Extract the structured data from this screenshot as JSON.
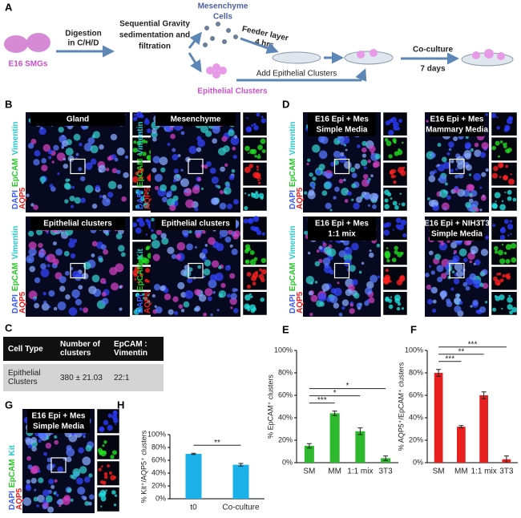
{
  "panel_labels": [
    "A",
    "B",
    "C",
    "D",
    "E",
    "F",
    "G",
    "H"
  ],
  "schematic": {
    "source": "E16 SMGs",
    "digestion": [
      "Digestion",
      "in C/H/D"
    ],
    "separation": [
      "Sequential Gravity",
      "sedimentation and",
      "filtration"
    ],
    "mesenchyme": [
      "Mesenchyme",
      "Cells"
    ],
    "epithelial": "Epithelial Clusters",
    "feeder": [
      "Feeder layer",
      "4 hrs"
    ],
    "add": "Add Epithelial Clusters",
    "coculture": [
      "Co-culture",
      "7 days"
    ]
  },
  "images": {
    "B": [
      {
        "title": [
          "Gland"
        ],
        "stains": [
          [
            {
              "text": "DAPI",
              "color": "#3b5bff"
            },
            {
              "text": "EpCAM",
              "color": "#22cc22"
            },
            {
              "text": "Vimentin",
              "color": "#22cccc"
            }
          ],
          [
            {
              "text": "AQP5",
              "color": "#ee2020"
            }
          ]
        ]
      },
      {
        "title": [
          "Mesenchyme"
        ],
        "stains": [
          [
            {
              "text": "DAPI",
              "color": "#3b5bff"
            },
            {
              "text": "EpCAM",
              "color": "#22cc22"
            },
            {
              "text": "Vimentin",
              "color": "#22cccc"
            }
          ],
          [
            {
              "text": "AQP5",
              "color": "#ee2020"
            }
          ]
        ]
      },
      {
        "title": [
          "Epithelial clusters"
        ],
        "stains": [
          [
            {
              "text": "DAPI",
              "color": "#3b5bff"
            },
            {
              "text": "EpCAM",
              "color": "#22cc22"
            },
            {
              "text": "Vimentin",
              "color": "#22cccc"
            }
          ],
          [
            {
              "text": "AQP5",
              "color": "#ee2020"
            }
          ]
        ]
      },
      {
        "title": [
          "Epithelial clusters"
        ],
        "stains": [
          [
            {
              "text": "DAPI",
              "color": "#3b5bff"
            },
            {
              "text": "EpCAM",
              "color": "#22cc22"
            },
            {
              "text": "Kit",
              "color": "#22cccc"
            }
          ],
          [
            {
              "text": "AQP5",
              "color": "#ee2020"
            }
          ]
        ]
      }
    ],
    "D": [
      {
        "title": [
          "E16 Epi + Mes",
          "Simple Media"
        ],
        "stains": [
          [
            {
              "text": "DAPI",
              "color": "#3b5bff"
            },
            {
              "text": "EpCAM",
              "color": "#22cc22"
            },
            {
              "text": "Vimentin",
              "color": "#22cccc"
            }
          ],
          [
            {
              "text": "AQP5",
              "color": "#ee2020"
            }
          ]
        ]
      },
      {
        "title": [
          "E16 Epi + Mes",
          "Mammary Media"
        ],
        "stains": []
      },
      {
        "title": [
          "E16 Epi + Mes",
          "1:1 mix"
        ],
        "stains": [
          [
            {
              "text": "DAPI",
              "color": "#3b5bff"
            },
            {
              "text": "EpCAM",
              "color": "#22cc22"
            },
            {
              "text": "Vimentin",
              "color": "#22cccc"
            }
          ],
          [
            {
              "text": "AQP5",
              "color": "#ee2020"
            }
          ]
        ]
      },
      {
        "title": [
          "E16 Epi + NIH3T3",
          "Simple Media"
        ],
        "stains": []
      }
    ],
    "G": [
      {
        "title": [
          "E16 Epi + Mes",
          "Simple Media"
        ],
        "stains": [
          [
            {
              "text": "DAPI",
              "color": "#3b5bff"
            },
            {
              "text": "EpCAM",
              "color": "#22cc22"
            },
            {
              "text": "Kit",
              "color": "#22cccc"
            }
          ],
          [
            {
              "text": "AQP5",
              "color": "#ee2020"
            }
          ]
        ]
      }
    ]
  },
  "table": {
    "header": [
      "Cell Type",
      "Number of clusters",
      "EpCAM : Vimentin"
    ],
    "rows": [
      [
        "Epithelial Clusters",
        "380 ± 21.03",
        "22:1"
      ]
    ]
  },
  "chart_data": [
    {
      "type": "bar",
      "y_label": "% EpCAM⁺ clusters",
      "categories": [
        "SM",
        "MM",
        "1:1 mix",
        "3T3"
      ],
      "values": [
        15,
        44,
        28,
        4
      ],
      "errors": [
        2,
        2,
        3,
        2
      ],
      "color": "#2db82d",
      "ylim": [
        0,
        100
      ],
      "yticks": [
        {
          "value": 0,
          "label": "0%"
        },
        {
          "value": 20,
          "label": "20%"
        },
        {
          "value": 40,
          "label": "40%"
        },
        {
          "value": 60,
          "label": "60%"
        },
        {
          "value": 80,
          "label": "80%"
        },
        {
          "value": 100,
          "label": "100%"
        }
      ],
      "significance": [
        "***",
        "*",
        "*"
      ]
    },
    {
      "type": "bar",
      "y_label": "% AQP5⁺/EpCAM⁺ clusters",
      "categories": [
        "SM",
        "MM",
        "1:1 mix",
        "3T3"
      ],
      "values": [
        80,
        32,
        60,
        3
      ],
      "errors": [
        3,
        1,
        3,
        3
      ],
      "color": "#e8211f",
      "ylim": [
        0,
        100
      ],
      "yticks": [
        {
          "value": 0,
          "label": "0%"
        },
        {
          "value": 20,
          "label": "20%"
        },
        {
          "value": 40,
          "label": "40%"
        },
        {
          "value": 60,
          "label": "60%"
        },
        {
          "value": 80,
          "label": "80%"
        },
        {
          "value": 100,
          "label": "100%"
        }
      ],
      "significance": [
        "***",
        "**",
        "***"
      ]
    },
    {
      "type": "bar",
      "y_label": "% Kit⁺/AQP5⁺ clusters",
      "categories": [
        "t0",
        "Co-culture"
      ],
      "values": [
        70,
        53
      ],
      "errors": [
        1,
        2
      ],
      "color": "#1cb0e8",
      "ylim": [
        0,
        100
      ],
      "yticks": [
        {
          "value": 0,
          "label": "0%"
        },
        {
          "value": 20,
          "label": "20%"
        },
        {
          "value": 40,
          "label": "40%"
        },
        {
          "value": 60,
          "label": "60%"
        },
        {
          "value": 80,
          "label": "80%"
        },
        {
          "value": 100,
          "label": "100%"
        }
      ],
      "significance": [
        "**"
      ]
    }
  ]
}
